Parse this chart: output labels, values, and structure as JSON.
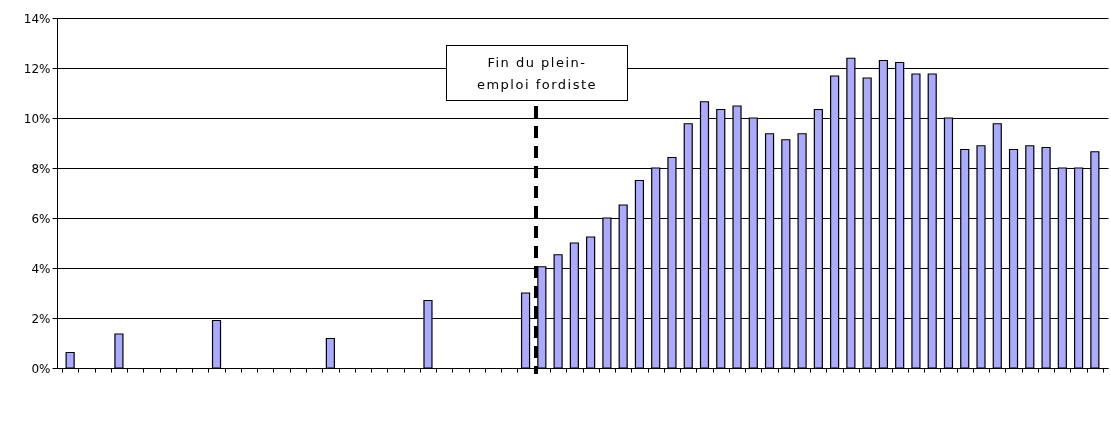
{
  "chart_data": {
    "type": "bar",
    "categories": [
      null,
      null,
      null,
      null,
      null,
      null,
      null,
      null,
      null,
      null,
      null,
      null,
      null,
      null,
      null,
      null,
      null,
      null,
      null,
      null,
      null,
      null,
      null,
      null,
      null,
      null,
      null,
      null,
      null,
      null,
      null,
      null,
      null,
      null,
      null,
      null,
      null,
      null,
      null,
      null,
      null,
      null,
      null,
      null,
      null,
      null,
      null,
      null,
      null,
      null,
      null,
      null,
      null,
      null,
      null,
      null,
      null,
      null,
      null,
      null,
      null,
      null,
      null,
      null
    ],
    "values": [
      0.62,
      null,
      null,
      1.36,
      null,
      null,
      null,
      null,
      null,
      1.9,
      null,
      null,
      null,
      null,
      null,
      null,
      1.18,
      null,
      null,
      null,
      null,
      null,
      2.7,
      null,
      null,
      null,
      null,
      null,
      3.0,
      4.05,
      4.53,
      5.0,
      5.24,
      6.0,
      6.52,
      7.5,
      8.0,
      8.42,
      9.77,
      10.65,
      10.34,
      10.48,
      10.0,
      9.37,
      9.13,
      9.37,
      10.34,
      11.68,
      12.39,
      11.6,
      12.3,
      12.22,
      11.76,
      11.76,
      10.0,
      8.74,
      8.89,
      9.77,
      8.74,
      8.89,
      8.82,
      8.0,
      8.0,
      8.65
    ],
    "color": "#aaaaff",
    "ylim": [
      0,
      14
    ],
    "yticks": [
      {
        "value": 0,
        "label": "0%"
      },
      {
        "value": 2,
        "label": "2%"
      },
      {
        "value": 4,
        "label": "4%"
      },
      {
        "value": 6,
        "label": "6%"
      },
      {
        "value": 8,
        "label": "8%"
      },
      {
        "value": 10,
        "label": "10%"
      },
      {
        "value": 12,
        "label": "12%"
      },
      {
        "value": 14,
        "label": "14%"
      }
    ],
    "grid": "y",
    "annotations": [
      "Fin du plein-emploi fordiste"
    ]
  }
}
